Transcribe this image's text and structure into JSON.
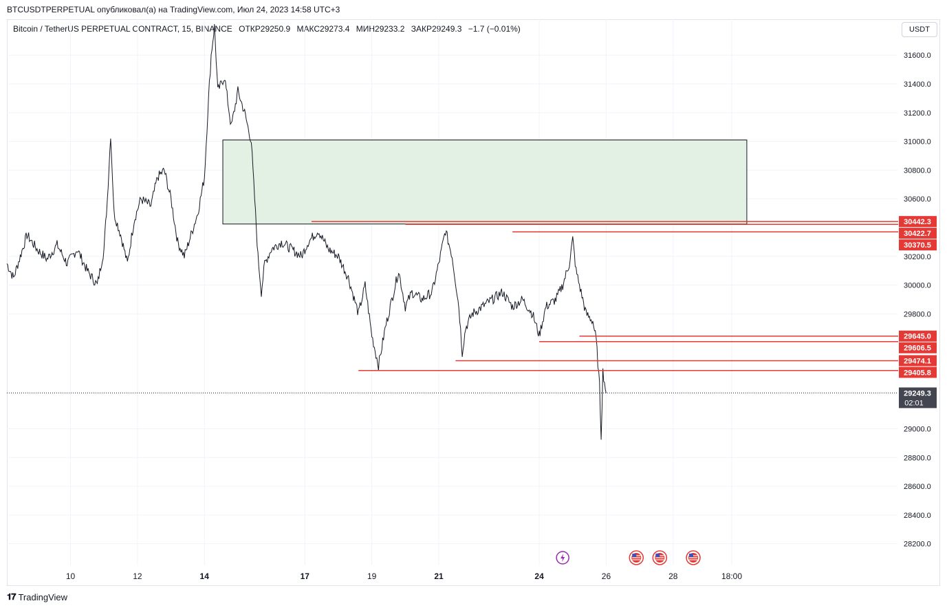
{
  "header": {
    "published": "BTCUSDTPERPETUAL опубликовал(а) на TradingView.com, Июл 24, 2023 14:58 UTC+3",
    "symbol": "Bitcoin / TetherUS PERPETUAL CONTRACT, 15, BINANCE",
    "open": "ОТКР29250.9",
    "high": "МАКС29273.4",
    "low": "МИН29233.2",
    "close": "ЗАКР29249.3",
    "change": "−1.7 (−0.01%)",
    "currency": "USDT"
  },
  "footer": {
    "brand": "TradingView"
  },
  "colors": {
    "line": "#131722",
    "level": "#e53935",
    "zone_fill": "#e2f1e3",
    "zone_border": "#131722",
    "last_price_bg": "#434651"
  },
  "chart_data": {
    "type": "line",
    "y_axis_ticks": [
      "31600.0",
      "31400.0",
      "31200.0",
      "31000.0",
      "30800.0",
      "30600.0",
      "30200.0",
      "30000.0",
      "29800.0",
      "29000.0",
      "28800.0",
      "28600.0",
      "28400.0",
      "28200.0"
    ],
    "x_axis_ticks": [
      {
        "label": "10",
        "day": 10
      },
      {
        "label": "12",
        "day": 12
      },
      {
        "label": "14",
        "day": 14
      },
      {
        "label": "17",
        "day": 17
      },
      {
        "label": "19",
        "day": 19
      },
      {
        "label": "21",
        "day": 21
      },
      {
        "label": "24",
        "day": 24
      },
      {
        "label": "26",
        "day": 26
      },
      {
        "label": "28",
        "day": 28
      },
      {
        "label": "18:00",
        "day": 29.75
      }
    ],
    "ylim": [
      28050,
      31850
    ],
    "xlim_days": [
      8.1,
      34.7
    ],
    "price_path": [
      [
        8.1,
        30150
      ],
      [
        8.3,
        30050
      ],
      [
        8.5,
        30200
      ],
      [
        8.7,
        30350
      ],
      [
        9.0,
        30250
      ],
      [
        9.3,
        30180
      ],
      [
        9.6,
        30280
      ],
      [
        9.9,
        30150
      ],
      [
        10.2,
        30250
      ],
      [
        10.5,
        30100
      ],
      [
        10.8,
        30000
      ],
      [
        11.0,
        30250
      ],
      [
        11.1,
        30600
      ],
      [
        11.2,
        31050
      ],
      [
        11.3,
        30500
      ],
      [
        11.5,
        30350
      ],
      [
        11.7,
        30150
      ],
      [
        11.9,
        30450
      ],
      [
        12.1,
        30600
      ],
      [
        12.4,
        30550
      ],
      [
        12.6,
        30750
      ],
      [
        12.8,
        30800
      ],
      [
        13.0,
        30600
      ],
      [
        13.2,
        30300
      ],
      [
        13.4,
        30200
      ],
      [
        13.6,
        30350
      ],
      [
        13.8,
        30500
      ],
      [
        14.0,
        30750
      ],
      [
        14.1,
        31200
      ],
      [
        14.2,
        31600
      ],
      [
        14.3,
        31800
      ],
      [
        14.4,
        31350
      ],
      [
        14.6,
        31450
      ],
      [
        14.8,
        31100
      ],
      [
        15.0,
        31350
      ],
      [
        15.2,
        31200
      ],
      [
        15.4,
        31000
      ],
      [
        15.5,
        30600
      ],
      [
        15.6,
        30200
      ],
      [
        15.7,
        29950
      ],
      [
        15.8,
        30150
      ],
      [
        16.0,
        30250
      ],
      [
        16.3,
        30300
      ],
      [
        16.6,
        30250
      ],
      [
        16.9,
        30200
      ],
      [
        17.1,
        30300
      ],
      [
        17.4,
        30380
      ],
      [
        17.7,
        30250
      ],
      [
        18.0,
        30200
      ],
      [
        18.3,
        30050
      ],
      [
        18.6,
        29800
      ],
      [
        18.8,
        30000
      ],
      [
        19.0,
        29650
      ],
      [
        19.2,
        29440
      ],
      [
        19.4,
        29700
      ],
      [
        19.6,
        29900
      ],
      [
        19.8,
        30100
      ],
      [
        20.0,
        29850
      ],
      [
        20.2,
        29950
      ],
      [
        20.5,
        29900
      ],
      [
        20.8,
        29950
      ],
      [
        21.0,
        30150
      ],
      [
        21.2,
        30380
      ],
      [
        21.4,
        30200
      ],
      [
        21.6,
        29850
      ],
      [
        21.7,
        29530
      ],
      [
        21.8,
        29700
      ],
      [
        22.0,
        29800
      ],
      [
        22.3,
        29850
      ],
      [
        22.6,
        29900
      ],
      [
        22.9,
        29950
      ],
      [
        23.2,
        29850
      ],
      [
        23.5,
        29900
      ],
      [
        23.8,
        29800
      ],
      [
        24.0,
        29650
      ],
      [
        24.2,
        29850
      ],
      [
        24.5,
        29900
      ],
      [
        24.7,
        30000
      ],
      [
        24.9,
        30150
      ],
      [
        25.0,
        30320
      ],
      [
        25.1,
        30100
      ],
      [
        25.3,
        29900
      ],
      [
        25.4,
        29800
      ],
      [
        25.6,
        29750
      ],
      [
        25.7,
        29620
      ],
      [
        25.8,
        29300
      ],
      [
        25.85,
        28950
      ],
      [
        25.9,
        29400
      ],
      [
        26.0,
        29249
      ]
    ],
    "zone": {
      "x_start_day": 14.55,
      "x_end_day": 30.2,
      "y_top": 31010,
      "y_bottom": 30425
    },
    "levels": [
      {
        "label": "30442.3",
        "value": 30442.3,
        "start_day": 17.2
      },
      {
        "label": "30422.7",
        "value": 30422.7,
        "start_day": 20.0
      },
      {
        "label": "30370.5",
        "value": 30370.5,
        "start_day": 23.2
      },
      {
        "label": "29645.0",
        "value": 29645.0,
        "start_day": 25.2
      },
      {
        "label": "29606.5",
        "value": 29606.5,
        "start_day": 24.0
      },
      {
        "label": "29474.1",
        "value": 29474.1,
        "start_day": 21.5
      },
      {
        "label": "29405.8",
        "value": 29405.8,
        "start_day": 18.6
      }
    ],
    "last_price": {
      "label": "29249.3",
      "value": 29249.3,
      "countdown": "02:01"
    },
    "event_markers": [
      {
        "icon": "lightning-icon",
        "day": 24.7
      },
      {
        "icon": "us-flag-icon",
        "day": 26.9
      },
      {
        "icon": "us-flag-icon",
        "day": 27.6
      },
      {
        "icon": "us-flag-icon",
        "day": 28.6
      }
    ]
  }
}
